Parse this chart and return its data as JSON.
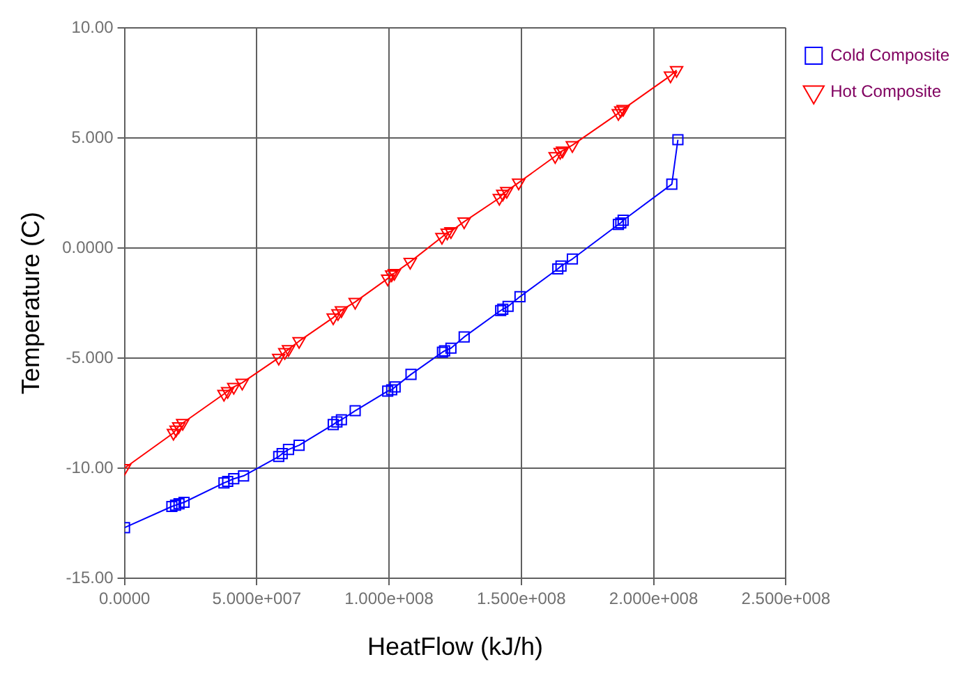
{
  "chart_data": {
    "type": "line",
    "xlabel": "HeatFlow (kJ/h)",
    "ylabel": "Temperature (C)",
    "xlim": [
      0,
      250000000
    ],
    "ylim": [
      -15,
      10
    ],
    "xticks": [
      {
        "value": 0,
        "label": "0.0000"
      },
      {
        "value": 50000000,
        "label": "5.000e+007"
      },
      {
        "value": 100000000,
        "label": "1.000e+008"
      },
      {
        "value": 150000000,
        "label": "1.500e+008"
      },
      {
        "value": 200000000,
        "label": "2.000e+008"
      },
      {
        "value": 250000000,
        "label": "2.500e+008"
      }
    ],
    "yticks": [
      {
        "value": -15,
        "label": "-15.00"
      },
      {
        "value": -10,
        "label": "-10.00"
      },
      {
        "value": -5,
        "label": "-5.000"
      },
      {
        "value": 0,
        "label": "0.0000"
      },
      {
        "value": 5,
        "label": "5.000"
      },
      {
        "value": 10,
        "label": "10.00"
      }
    ],
    "grid": true,
    "legend": "top right",
    "line_style": "solid",
    "series": [
      {
        "name": "Cold Composite",
        "color": "#0000ff",
        "marker": "square",
        "x": [
          0,
          17900000,
          19300000,
          20600000,
          22500000,
          37600000,
          39000000,
          41300000,
          45000000,
          58300000,
          59600000,
          62000000,
          66000000,
          78900000,
          80300000,
          82000000,
          87200000,
          99500000,
          101000000,
          102300000,
          108300000,
          120200000,
          121000000,
          123400000,
          128400000,
          142200000,
          143000000,
          145000000,
          149500000,
          163800000,
          165000000,
          169300000,
          186700000,
          187600000,
          188500000,
          206900000,
          209200000
        ],
        "values": [
          -12.7,
          -11.74,
          -11.68,
          -11.62,
          -11.55,
          -10.67,
          -10.6,
          -10.48,
          -10.35,
          -9.47,
          -9.34,
          -9.15,
          -8.96,
          -8.02,
          -7.9,
          -7.8,
          -7.39,
          -6.5,
          -6.44,
          -6.31,
          -5.74,
          -4.73,
          -4.67,
          -4.55,
          -4.04,
          -2.84,
          -2.78,
          -2.65,
          -2.21,
          -0.95,
          -0.82,
          -0.5,
          1.07,
          1.14,
          1.26,
          2.9,
          4.92
        ]
      },
      {
        "name": "Hot Composite",
        "color": "#ff0000",
        "marker": "triangle",
        "x": [
          0,
          18500000,
          19500000,
          20500000,
          22000000,
          37600000,
          39000000,
          41300000,
          44500000,
          58300000,
          60600000,
          62000000,
          66000000,
          78900000,
          80700000,
          82000000,
          87200000,
          99500000,
          101000000,
          102000000,
          108000000,
          120000000,
          122000000,
          123400000,
          128400000,
          141700000,
          143000000,
          144500000,
          149000000,
          162800000,
          164700000,
          165600000,
          169300000,
          186700000,
          187600000,
          188500000,
          206400000,
          208700000
        ],
        "values": [
          -10,
          -8.4,
          -8.25,
          -8.1,
          -7.95,
          -6.63,
          -6.5,
          -6.31,
          -6.12,
          -4.99,
          -4.73,
          -4.6,
          -4.23,
          -3.16,
          -2.97,
          -2.83,
          -2.45,
          -1.39,
          -1.2,
          -1.14,
          -0.63,
          0.5,
          0.7,
          0.76,
          1.2,
          2.27,
          2.46,
          2.59,
          2.97,
          4.17,
          4.36,
          4.42,
          4.67,
          6.12,
          6.25,
          6.31,
          7.83,
          8.08
        ]
      }
    ]
  }
}
